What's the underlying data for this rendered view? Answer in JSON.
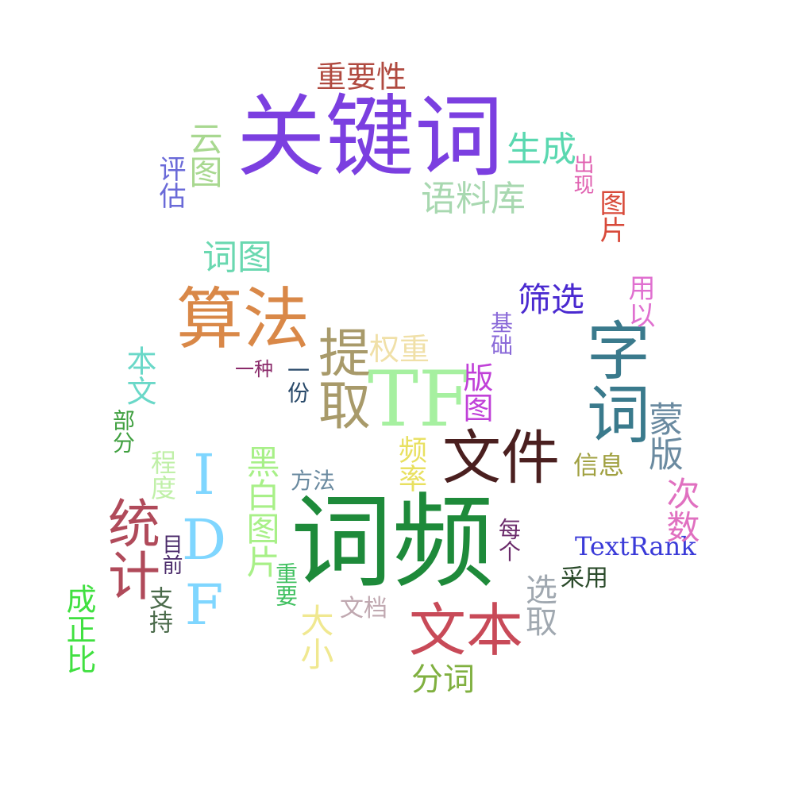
{
  "words": [
    {
      "id": "guanjianci",
      "text": "关键词",
      "color": "#7b3fe0"
    },
    {
      "id": "cipin",
      "text": "词频",
      "color": "#1e8a3a"
    },
    {
      "id": "tf",
      "text": "TF",
      "color": "#a6f0a0"
    },
    {
      "id": "idf",
      "text": "IDF",
      "color": "#7fd6ff"
    },
    {
      "id": "suanfa",
      "text": "算法",
      "color": "#d98848"
    },
    {
      "id": "wenjian",
      "text": "文件",
      "color": "#4a1f1f"
    },
    {
      "id": "zici",
      "text": "字词",
      "color": "#3a7a8c"
    },
    {
      "id": "wenben",
      "text": "文本",
      "color": "#c84a58"
    },
    {
      "id": "tongji",
      "text": "统计",
      "color": "#b04a5a"
    },
    {
      "id": "tiqu",
      "text": "提取",
      "color": "#a89a6a"
    },
    {
      "id": "zhongyaoxing",
      "text": "重要性",
      "color": "#b04a40"
    },
    {
      "id": "shengcheng",
      "text": "生成",
      "color": "#5ad8b0"
    },
    {
      "id": "yuliaoku",
      "text": "语料库",
      "color": "#a8d8b0"
    },
    {
      "id": "yuntu",
      "text": "云图",
      "color": "#a8d890"
    },
    {
      "id": "pinggu",
      "text": "评估",
      "color": "#6a6ad8"
    },
    {
      "id": "chuxian",
      "text": "出现",
      "color": "#e060b0"
    },
    {
      "id": "tupian",
      "text": "图片",
      "color": "#d84a3a"
    },
    {
      "id": "citu",
      "text": "词图",
      "color": "#6ad8b0"
    },
    {
      "id": "shaixuan",
      "text": "筛选",
      "color": "#4a2ad0"
    },
    {
      "id": "yongyi",
      "text": "用以",
      "color": "#e070d0"
    },
    {
      "id": "jichu",
      "text": "基础",
      "color": "#8a6ad8"
    },
    {
      "id": "quanzhong",
      "text": "权重",
      "color": "#f0e0a8"
    },
    {
      "id": "yizhong",
      "text": "一种",
      "color": "#8a2a6a"
    },
    {
      "id": "yifen",
      "text": "一份",
      "color": "#2a4a6a"
    },
    {
      "id": "bantu",
      "text": "版图",
      "color": "#c040d8"
    },
    {
      "id": "benwen",
      "text": "本文",
      "color": "#6ad8c8"
    },
    {
      "id": "bufen",
      "text": "部分",
      "color": "#40a040"
    },
    {
      "id": "mengban",
      "text": "蒙版",
      "color": "#6a8aa0"
    },
    {
      "id": "heibaitupian",
      "text": "黑白图片",
      "color": "#a8f088"
    },
    {
      "id": "pinlv",
      "text": "频率",
      "color": "#e8e060"
    },
    {
      "id": "fangfa",
      "text": "方法",
      "color": "#6a8aa0"
    },
    {
      "id": "chengdu",
      "text": "程度",
      "color": "#c0f0a8"
    },
    {
      "id": "xinxi",
      "text": "信息",
      "color": "#a0a040"
    },
    {
      "id": "cishu",
      "text": "次数",
      "color": "#e070c0"
    },
    {
      "id": "textrank",
      "text": "TextRank",
      "color": "#3a3ad8"
    },
    {
      "id": "meige",
      "text": "每个",
      "color": "#6a2a6a"
    },
    {
      "id": "muqian",
      "text": "目前",
      "color": "#4a2a6a"
    },
    {
      "id": "zhongyao",
      "text": "重要",
      "color": "#40c060"
    },
    {
      "id": "caiyong",
      "text": "采用",
      "color": "#2a4a2a"
    },
    {
      "id": "xuanqu",
      "text": "选取",
      "color": "#a0a8b0"
    },
    {
      "id": "zhichi",
      "text": "支持",
      "color": "#4a6a4a"
    },
    {
      "id": "wendang",
      "text": "文档",
      "color": "#c0a8b0"
    },
    {
      "id": "daxiao",
      "text": "大小",
      "color": "#f0e890"
    },
    {
      "id": "chengzhengbi",
      "text": "成正比",
      "color": "#40e040"
    },
    {
      "id": "fenci",
      "text": "分词",
      "color": "#80b040"
    }
  ]
}
